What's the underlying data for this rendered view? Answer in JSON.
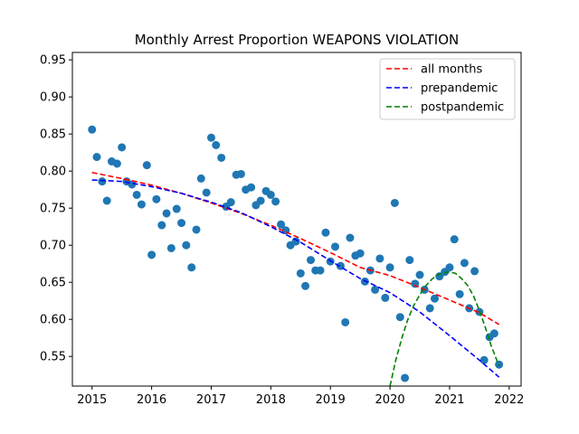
{
  "chart_data": {
    "type": "scatter",
    "title": "Monthly Arrest Proportion WEAPONS VIOLATION",
    "xlabel": "",
    "ylabel": "",
    "xlim": [
      2014.67,
      2022.2
    ],
    "ylim": [
      0.51,
      0.96
    ],
    "x_ticks": [
      2015,
      2016,
      2017,
      2018,
      2019,
      2020,
      2021,
      2022
    ],
    "y_ticks": [
      0.55,
      0.6,
      0.65,
      0.7,
      0.75,
      0.8,
      0.85,
      0.9,
      0.95
    ],
    "y_tick_labels": [
      "0.55",
      "0.60",
      "0.65",
      "0.70",
      "0.75",
      "0.80",
      "0.85",
      "0.90",
      "0.95"
    ],
    "grid": false,
    "legend_position": "top-right",
    "point_color": "#1f77b4",
    "points": [
      [
        2015.0,
        0.856
      ],
      [
        2015.08,
        0.819
      ],
      [
        2015.17,
        0.786
      ],
      [
        2015.25,
        0.76
      ],
      [
        2015.33,
        0.813
      ],
      [
        2015.42,
        0.81
      ],
      [
        2015.5,
        0.832
      ],
      [
        2015.58,
        0.786
      ],
      [
        2015.67,
        0.782
      ],
      [
        2015.75,
        0.768
      ],
      [
        2015.83,
        0.755
      ],
      [
        2015.92,
        0.808
      ],
      [
        2016.0,
        0.687
      ],
      [
        2016.08,
        0.762
      ],
      [
        2016.17,
        0.727
      ],
      [
        2016.25,
        0.743
      ],
      [
        2016.33,
        0.696
      ],
      [
        2016.42,
        0.749
      ],
      [
        2016.5,
        0.73
      ],
      [
        2016.58,
        0.7
      ],
      [
        2016.67,
        0.67
      ],
      [
        2016.75,
        0.721
      ],
      [
        2016.83,
        0.79
      ],
      [
        2016.92,
        0.771
      ],
      [
        2017.0,
        0.845
      ],
      [
        2017.08,
        0.835
      ],
      [
        2017.17,
        0.818
      ],
      [
        2017.25,
        0.752
      ],
      [
        2017.33,
        0.758
      ],
      [
        2017.42,
        0.795
      ],
      [
        2017.5,
        0.796
      ],
      [
        2017.58,
        0.775
      ],
      [
        2017.67,
        0.778
      ],
      [
        2017.75,
        0.754
      ],
      [
        2017.83,
        0.76
      ],
      [
        2017.92,
        0.773
      ],
      [
        2018.0,
        0.768
      ],
      [
        2018.08,
        0.759
      ],
      [
        2018.17,
        0.728
      ],
      [
        2018.25,
        0.72
      ],
      [
        2018.33,
        0.7
      ],
      [
        2018.42,
        0.705
      ],
      [
        2018.5,
        0.662
      ],
      [
        2018.58,
        0.645
      ],
      [
        2018.67,
        0.68
      ],
      [
        2018.75,
        0.666
      ],
      [
        2018.83,
        0.666
      ],
      [
        2018.92,
        0.717
      ],
      [
        2019.0,
        0.678
      ],
      [
        2019.08,
        0.698
      ],
      [
        2019.17,
        0.672
      ],
      [
        2019.25,
        0.596
      ],
      [
        2019.33,
        0.71
      ],
      [
        2019.42,
        0.686
      ],
      [
        2019.5,
        0.689
      ],
      [
        2019.58,
        0.651
      ],
      [
        2019.67,
        0.666
      ],
      [
        2019.75,
        0.64
      ],
      [
        2019.83,
        0.682
      ],
      [
        2019.92,
        0.629
      ],
      [
        2020.0,
        0.67
      ],
      [
        2020.08,
        0.757
      ],
      [
        2020.17,
        0.603
      ],
      [
        2020.25,
        0.521
      ],
      [
        2020.33,
        0.68
      ],
      [
        2020.42,
        0.648
      ],
      [
        2020.5,
        0.66
      ],
      [
        2020.58,
        0.64
      ],
      [
        2020.67,
        0.615
      ],
      [
        2020.75,
        0.628
      ],
      [
        2020.83,
        0.658
      ],
      [
        2020.92,
        0.664
      ],
      [
        2021.0,
        0.67
      ],
      [
        2021.08,
        0.708
      ],
      [
        2021.17,
        0.634
      ],
      [
        2021.25,
        0.676
      ],
      [
        2021.33,
        0.615
      ],
      [
        2021.42,
        0.665
      ],
      [
        2021.5,
        0.61
      ],
      [
        2021.58,
        0.545
      ],
      [
        2021.67,
        0.576
      ],
      [
        2021.75,
        0.581
      ],
      [
        2021.83,
        0.539
      ]
    ],
    "series": [
      {
        "name": "all months",
        "style": "dashed",
        "color": "#ff0000",
        "x": [
          2015.0,
          2015.5,
          2016.0,
          2016.5,
          2017.0,
          2017.5,
          2018.0,
          2018.5,
          2019.0,
          2019.5,
          2020.0,
          2020.5,
          2021.0,
          2021.5,
          2021.83
        ],
        "values": [
          0.798,
          0.79,
          0.781,
          0.77,
          0.757,
          0.743,
          0.727,
          0.709,
          0.69,
          0.67,
          0.659,
          0.643,
          0.626,
          0.609,
          0.593
        ]
      },
      {
        "name": "prepandemic",
        "style": "dashed",
        "color": "#0000ff",
        "x": [
          2015.0,
          2015.5,
          2016.0,
          2016.5,
          2017.0,
          2017.5,
          2018.0,
          2018.5,
          2019.0,
          2019.5,
          2020.0,
          2020.5,
          2021.0,
          2021.5,
          2021.83
        ],
        "values": [
          0.788,
          0.786,
          0.779,
          0.77,
          0.758,
          0.744,
          0.725,
          0.704,
          0.679,
          0.655,
          0.636,
          0.61,
          0.578,
          0.545,
          0.522
        ]
      },
      {
        "name": "postpandemic",
        "style": "dashed",
        "color": "#008000",
        "x": [
          2020.0,
          2020.1,
          2020.2,
          2020.3,
          2020.4,
          2020.5,
          2020.6,
          2020.7,
          2020.8,
          2020.9,
          2021.0,
          2021.1,
          2021.2,
          2021.3,
          2021.4,
          2021.5,
          2021.6,
          2021.7,
          2021.83
        ],
        "values": [
          0.51,
          0.546,
          0.575,
          0.6,
          0.619,
          0.633,
          0.645,
          0.654,
          0.66,
          0.663,
          0.664,
          0.662,
          0.655,
          0.646,
          0.632,
          0.612,
          0.589,
          0.564,
          0.537
        ]
      }
    ]
  }
}
